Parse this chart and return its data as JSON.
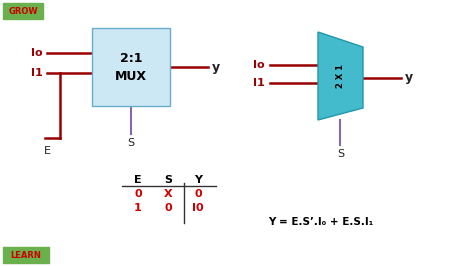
{
  "bg_color": "#ffffff",
  "grow_label": "GROW",
  "grow_bg": "#6ab04c",
  "grow_text_color": "#cc0000",
  "learn_label": "LEARN",
  "learn_bg": "#6ab04c",
  "learn_text_color": "#cc0000",
  "mux_box_color": "#cce8f4",
  "mux_box_edge": "#6aaccc",
  "mux_label1": "2:1",
  "mux_label2": "MUX",
  "mux_label_color": "#000000",
  "wire_color": "#990000",
  "select_wire_color": "#8866aa",
  "input_labels": [
    "Io",
    "I1"
  ],
  "output_label": "y",
  "e_label": "E",
  "s_label": "S",
  "trap_fill": "#44bbcc",
  "trap_edge": "#2299aa",
  "trap_text": "2 X 1",
  "table_headers": [
    "E",
    "S",
    "Y"
  ],
  "table_row1": [
    "0",
    "X",
    "0"
  ],
  "table_row2": [
    "1",
    "0",
    "I0"
  ],
  "table_data_color": "#cc0000",
  "table_header_color": "#000000",
  "formula": "Y = E.S’.I₀ + E.S.I₁",
  "formula_color": "#000000"
}
